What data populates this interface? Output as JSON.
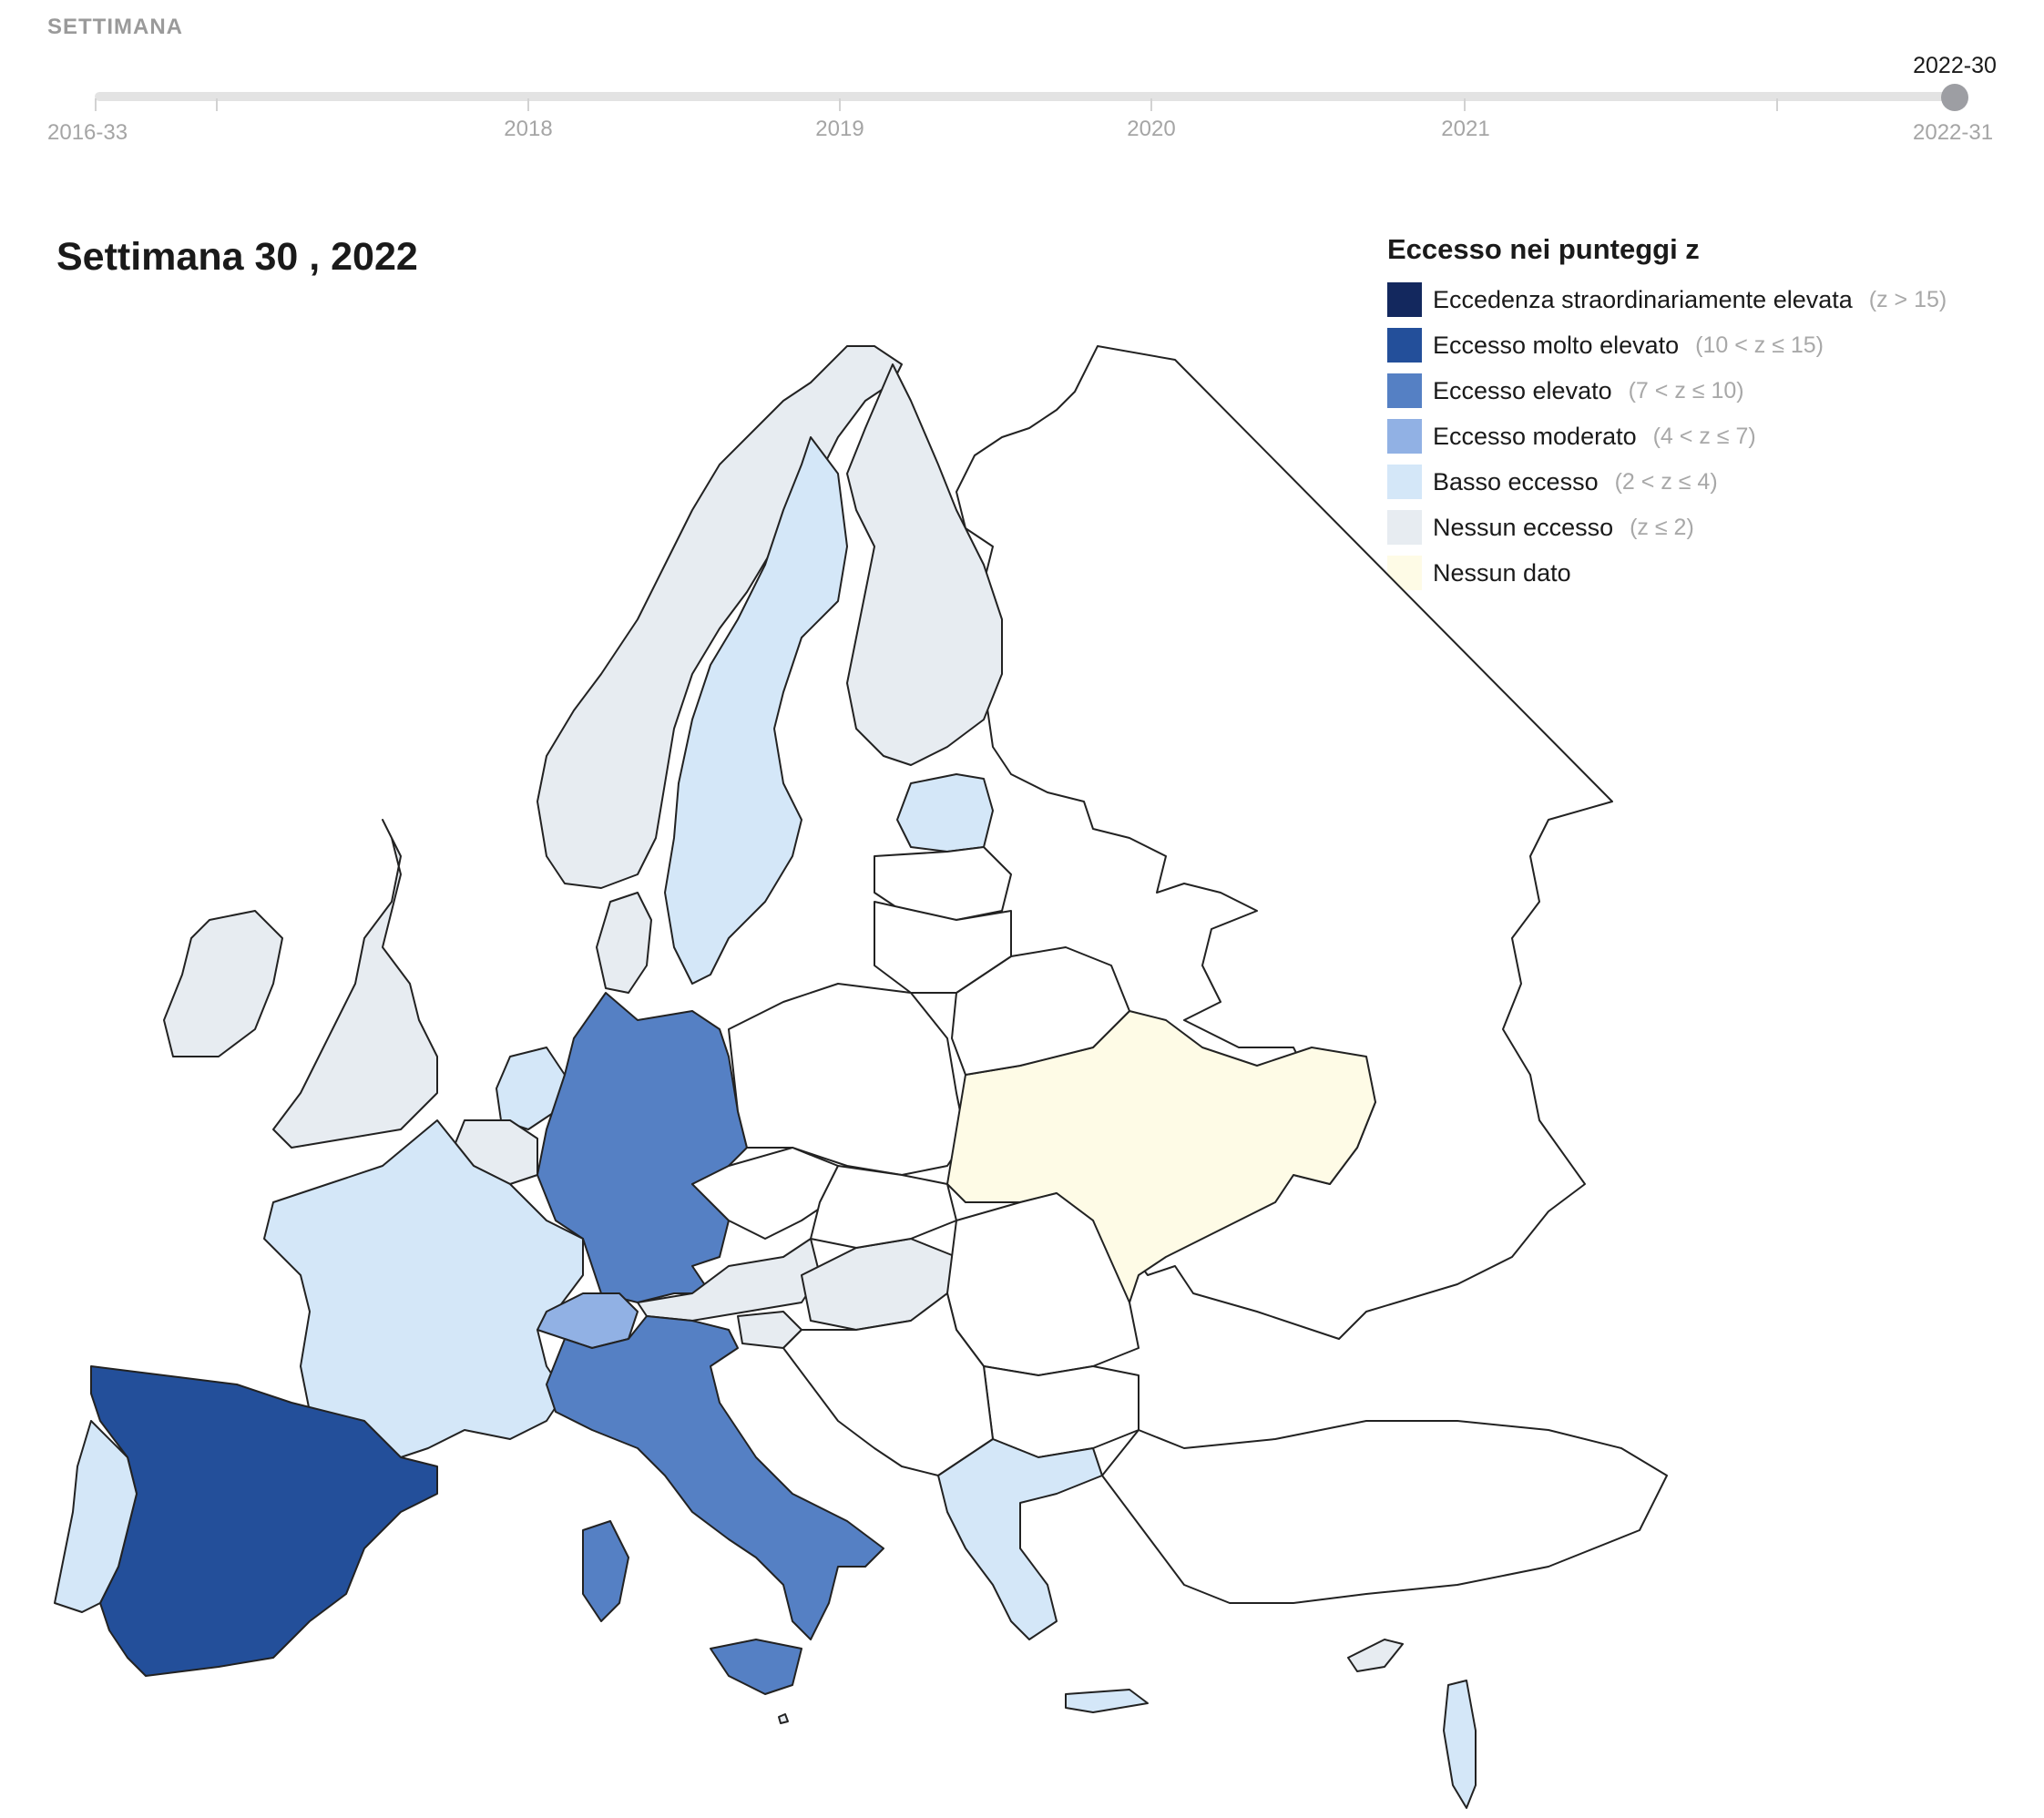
{
  "timeline": {
    "label": "SETTIMANA",
    "start_label": "2016-33",
    "end_label": "2022-31",
    "current": "2022-30",
    "years": [
      "2018",
      "2019",
      "2020",
      "2021"
    ]
  },
  "map": {
    "title": "Settimana 30 , 2022"
  },
  "legend": {
    "title": "Eccesso nei punteggi z",
    "items": [
      {
        "label": "Eccedenza straordinariamente elevata",
        "range": "(z > 15)",
        "color": "#13285e"
      },
      {
        "label": "Eccesso molto elevato",
        "range": "(10 < z ≤ 15)",
        "color": "#234f9a"
      },
      {
        "label": "Eccesso elevato",
        "range": "(7 < z ≤ 10)",
        "color": "#5580c4"
      },
      {
        "label": "Eccesso moderato",
        "range": "(4 < z ≤ 7)",
        "color": "#91b1e4"
      },
      {
        "label": "Basso eccesso",
        "range": "(2 < z ≤ 4)",
        "color": "#d4e7f8"
      },
      {
        "label": "Nessun eccesso",
        "range": "(z ≤ 2)",
        "color": "#e7ecf1"
      },
      {
        "label": "Nessun dato",
        "range": "",
        "color": "#fefbe6"
      }
    ]
  },
  "countries": {
    "spain": "very_high",
    "italy": "high",
    "germany": "high",
    "switzerland": "moderate",
    "france": "low",
    "portugal": "low",
    "sweden": "low",
    "estonia": "low",
    "netherlands": "low",
    "greece": "low",
    "cyprus": "none",
    "malta": "none",
    "israel": "low",
    "norway": "none",
    "finland": "none",
    "uk": "none",
    "ireland": "none",
    "denmark": "none",
    "belgium": "none",
    "austria": "none",
    "hungary": "none",
    "slovenia": "none",
    "luxembourg": "none",
    "ukraine": "no_data",
    "poland": "not_in_scope",
    "czechia": "not_in_scope",
    "slovakia": "not_in_scope",
    "romania": "not_in_scope",
    "bulgaria": "not_in_scope",
    "turkey": "not_in_scope",
    "russia": "not_in_scope",
    "belarus": "not_in_scope",
    "latvia": "not_in_scope",
    "lithuania": "not_in_scope",
    "balkans": "not_in_scope"
  },
  "colors": {
    "very_high": "#234f9a",
    "high": "#5580c4",
    "moderate": "#91b1e4",
    "low": "#d4e7f8",
    "none": "#e7ecf1",
    "no_data": "#fefbe6",
    "not_in_scope": "#ffffff"
  }
}
